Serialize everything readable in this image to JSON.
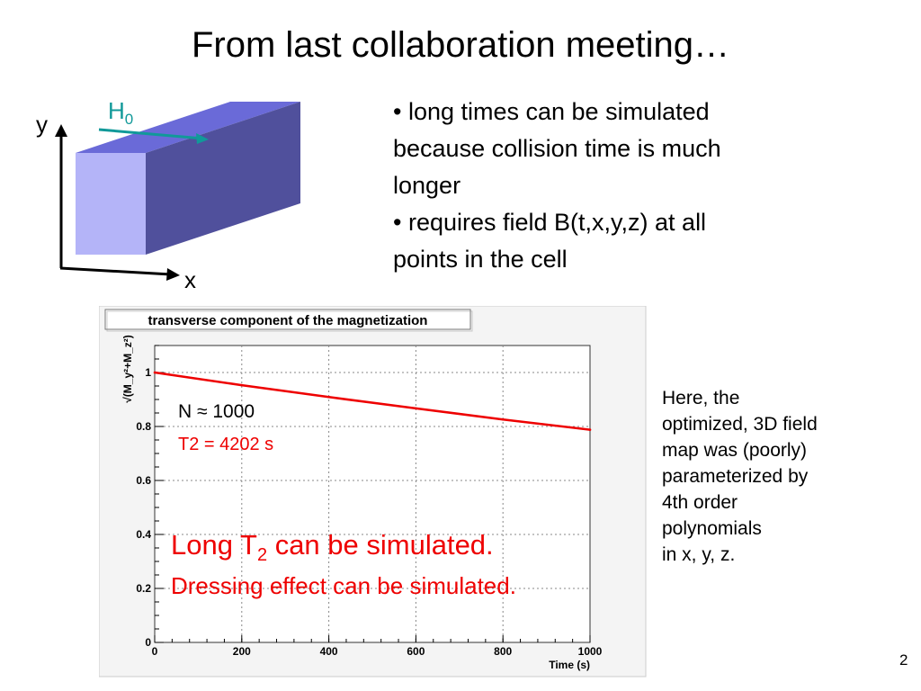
{
  "slide": {
    "title": "From last collaboration meeting…",
    "bullets": [
      "• long times can be simulated",
      "because collision time is much",
      "longer",
      "• requires field B(t,x,y,z) at all",
      "points in the cell"
    ],
    "side_note": [
      "Here, the",
      "optimized, 3D field",
      "map was (poorly)",
      "parameterized by",
      "4th order",
      "polynomials",
      "in x, y, z."
    ],
    "slide_number": "2"
  },
  "diagram": {
    "field_label": "H",
    "field_label_sub": "0",
    "y_label": "y",
    "x_label": "x",
    "colors": {
      "front_face": "#b4b4f8",
      "top_face": "#6a6ad8",
      "side_face": "#50509c",
      "arrow": "#119999"
    }
  },
  "plot": {
    "title": "transverse component of the magnetization",
    "annotation_n": "N ≈ 1000",
    "annotation_t2": "T2 = 4202 s",
    "long_t2_prefix": "Long T",
    "long_t2_sub": "2",
    "long_t2_suffix": " can be simulated.",
    "dressing": "Dressing effect can be simulated.",
    "accent": "#ee0000"
  },
  "chart_data": {
    "type": "line",
    "title": "transverse component of the magnetization",
    "xlabel": "Time (s)",
    "ylabel": "√(M_y²+M_z²)",
    "xlim": [
      0,
      1000
    ],
    "ylim": [
      0,
      1.1
    ],
    "x_ticks": [
      0,
      200,
      400,
      600,
      800,
      1000
    ],
    "y_ticks": [
      0,
      0.2,
      0.4,
      0.6,
      0.8,
      1
    ],
    "x_tick_labels": [
      "0",
      "200",
      "400",
      "600",
      "800",
      "1000"
    ],
    "y_tick_labels": [
      "0",
      "0.2",
      "0.4",
      "0.6",
      "0.8",
      "1"
    ],
    "grid": true,
    "series": [
      {
        "color": "#ee0000",
        "x": [
          0,
          200,
          400,
          600,
          800,
          1000
        ],
        "y": [
          1.0,
          0.953,
          0.909,
          0.867,
          0.826,
          0.788
        ]
      }
    ]
  }
}
